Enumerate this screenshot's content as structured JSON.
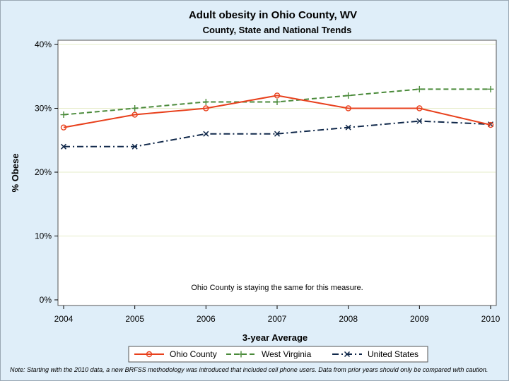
{
  "chart_data": {
    "type": "line",
    "title": "Adult obesity in Ohio County, WV",
    "subtitle": "County, State and National Trends",
    "xlabel": "3-year Average",
    "ylabel": "% Obese",
    "categories": [
      "2004",
      "2005",
      "2006",
      "2007",
      "2008",
      "2009",
      "2010"
    ],
    "ylim": [
      0,
      40
    ],
    "yticks": [
      0,
      10,
      20,
      30,
      40
    ],
    "ytick_labels": [
      "0%",
      "10%",
      "20%",
      "30%",
      "40%"
    ],
    "series": [
      {
        "name": "Ohio County",
        "values": [
          27,
          29,
          30,
          32,
          30,
          30,
          27.4
        ],
        "color": "#e8401c",
        "marker": "circle",
        "dash": "solid"
      },
      {
        "name": "West Virginia",
        "values": [
          29,
          30,
          31,
          31,
          32,
          33,
          33
        ],
        "color": "#4a8a3a",
        "marker": "plus",
        "dash": "dashed"
      },
      {
        "name": "United States",
        "values": [
          24,
          24,
          26,
          26,
          27,
          28,
          27.5
        ],
        "color": "#10284a",
        "marker": "x",
        "dash": "dashdot"
      }
    ],
    "annotation": "Ohio County is staying the same for this measure.",
    "legend_position": "bottom",
    "grid": true
  },
  "footnote": "Note: Starting with the 2010 data, a new BRFSS methodology was introduced that included cell phone users.  Data from prior years should only be compared with caution."
}
